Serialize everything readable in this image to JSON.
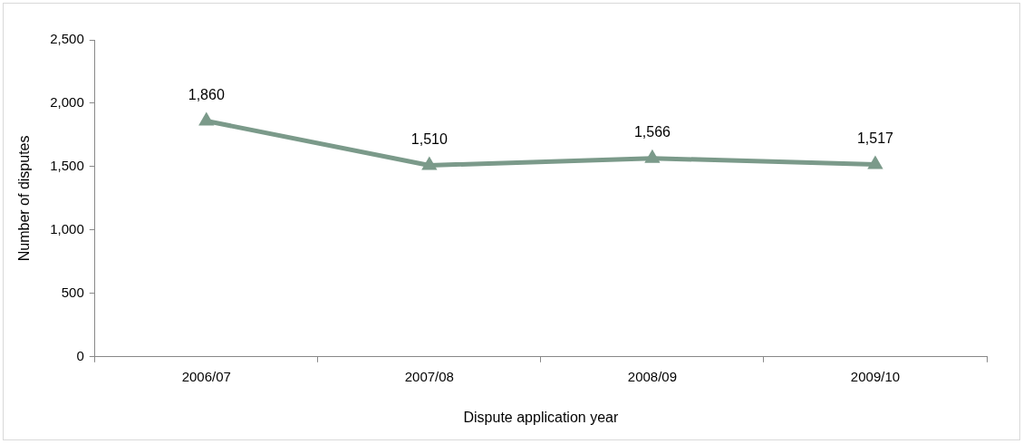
{
  "chart_data": {
    "type": "line",
    "xlabel": "Dispute application year",
    "ylabel": "Number of disputes",
    "categories": [
      "2006/07",
      "2007/08",
      "2008/09",
      "2009/10"
    ],
    "series": [
      {
        "color": "#7b9a8a",
        "values": [
          1860,
          1510,
          1566,
          1517
        ],
        "value_labels": [
          "1,860",
          "1,510",
          "1,566",
          "1,517"
        ]
      }
    ],
    "ylim": [
      0,
      2500
    ],
    "yticks": [
      0,
      500,
      {
        "value": 1000,
        "label": "1,000"
      },
      {
        "value": 1500,
        "label": "1,500"
      },
      {
        "value": 2000,
        "label": "2,000"
      },
      {
        "value": 2500,
        "label": "2,500"
      }
    ],
    "marker": "triangle",
    "line_style": "solid",
    "grid": false,
    "legend": false
  }
}
